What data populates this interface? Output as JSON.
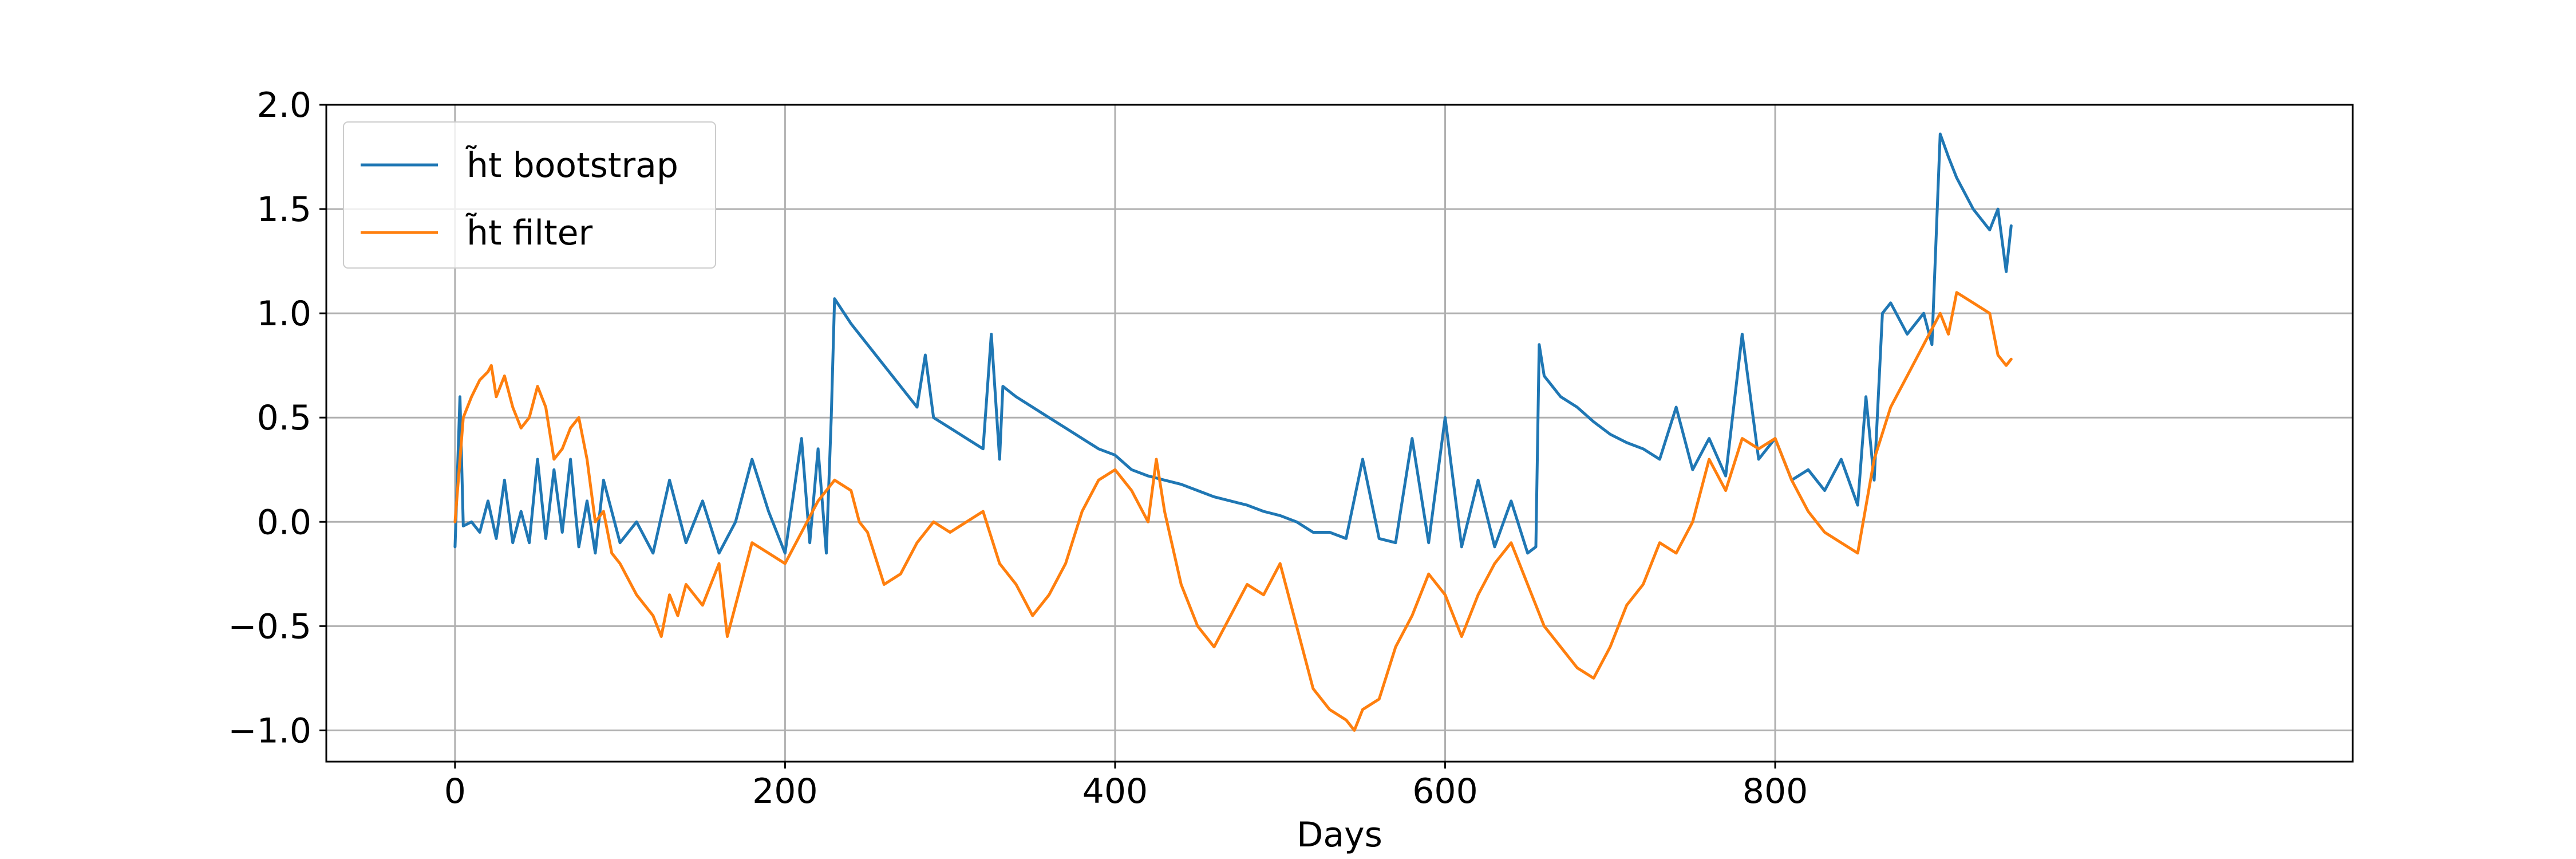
{
  "chart_data": {
    "type": "line",
    "title": "",
    "xlabel": "Days",
    "ylabel": "",
    "xlim": [
      -78,
      1150
    ],
    "ylim": [
      -1.15,
      2.0
    ],
    "x_ticks": [
      0,
      200,
      400,
      600,
      800
    ],
    "y_ticks": [
      -1.0,
      -0.5,
      0.0,
      0.5,
      1.0,
      1.5,
      2.0
    ],
    "x_tick_labels": [
      "0",
      "200",
      "400",
      "600",
      "800"
    ],
    "y_tick_labels": [
      "−1.0",
      "−0.5",
      "0.0",
      "0.5",
      "1.0",
      "1.5",
      "2.0"
    ],
    "grid": true,
    "legend_position": "upper-left",
    "series": [
      {
        "name": "h̃t bootstrap",
        "color": "#1f77b4",
        "x": [
          0,
          3,
          5,
          10,
          15,
          20,
          25,
          30,
          35,
          40,
          45,
          50,
          55,
          60,
          65,
          70,
          75,
          80,
          85,
          90,
          95,
          100,
          110,
          120,
          130,
          140,
          150,
          160,
          170,
          180,
          190,
          200,
          210,
          215,
          220,
          225,
          228,
          230,
          240,
          250,
          260,
          270,
          280,
          285,
          290,
          300,
          310,
          320,
          325,
          330,
          332,
          340,
          350,
          360,
          370,
          380,
          390,
          400,
          410,
          420,
          430,
          440,
          450,
          460,
          470,
          480,
          490,
          500,
          510,
          520,
          530,
          540,
          550,
          560,
          570,
          580,
          590,
          600,
          610,
          620,
          630,
          640,
          650,
          655,
          657,
          660,
          670,
          680,
          690,
          700,
          710,
          720,
          730,
          740,
          750,
          760,
          770,
          780,
          790,
          800,
          810,
          820,
          830,
          840,
          850,
          855,
          860,
          865,
          870,
          880,
          890,
          895,
          900,
          905,
          910,
          920,
          930,
          935,
          940,
          943
        ],
        "values": [
          -0.12,
          0.6,
          -0.02,
          0.0,
          -0.05,
          0.1,
          -0.08,
          0.2,
          -0.1,
          0.05,
          -0.1,
          0.3,
          -0.08,
          0.25,
          -0.05,
          0.3,
          -0.12,
          0.1,
          -0.15,
          0.2,
          0.05,
          -0.1,
          0.0,
          -0.15,
          0.2,
          -0.1,
          0.1,
          -0.15,
          0.0,
          0.3,
          0.05,
          -0.15,
          0.4,
          -0.1,
          0.35,
          -0.15,
          0.5,
          1.07,
          0.95,
          0.85,
          0.75,
          0.65,
          0.55,
          0.8,
          0.5,
          0.45,
          0.4,
          0.35,
          0.9,
          0.3,
          0.65,
          0.6,
          0.55,
          0.5,
          0.45,
          0.4,
          0.35,
          0.32,
          0.25,
          0.22,
          0.2,
          0.18,
          0.15,
          0.12,
          0.1,
          0.08,
          0.05,
          0.03,
          0.0,
          -0.05,
          -0.05,
          -0.08,
          0.3,
          -0.08,
          -0.1,
          0.4,
          -0.1,
          0.5,
          -0.12,
          0.2,
          -0.12,
          0.1,
          -0.15,
          -0.12,
          0.85,
          0.7,
          0.6,
          0.55,
          0.48,
          0.42,
          0.38,
          0.35,
          0.3,
          0.55,
          0.25,
          0.4,
          0.22,
          0.9,
          0.3,
          0.4,
          0.2,
          0.25,
          0.15,
          0.3,
          0.08,
          0.6,
          0.2,
          1.0,
          1.05,
          0.9,
          1.0,
          0.85,
          1.86,
          1.75,
          1.65,
          1.5,
          1.4,
          1.5,
          1.2,
          1.42
        ]
      },
      {
        "name": "h̃t filter",
        "color": "#ff7f0e",
        "x": [
          0,
          5,
          10,
          15,
          20,
          22,
          25,
          30,
          35,
          40,
          45,
          50,
          55,
          60,
          65,
          70,
          75,
          80,
          85,
          90,
          95,
          100,
          110,
          120,
          125,
          130,
          135,
          140,
          150,
          160,
          165,
          170,
          175,
          180,
          190,
          200,
          210,
          220,
          230,
          240,
          245,
          250,
          260,
          270,
          280,
          290,
          300,
          310,
          320,
          330,
          340,
          350,
          360,
          370,
          380,
          390,
          400,
          410,
          420,
          425,
          430,
          440,
          450,
          460,
          470,
          480,
          490,
          500,
          510,
          520,
          530,
          540,
          545,
          550,
          560,
          570,
          580,
          590,
          600,
          610,
          620,
          630,
          640,
          650,
          660,
          670,
          680,
          690,
          700,
          710,
          720,
          730,
          740,
          750,
          760,
          770,
          780,
          790,
          800,
          810,
          820,
          830,
          840,
          850,
          860,
          870,
          880,
          890,
          900,
          905,
          910,
          920,
          930,
          935,
          940,
          943
        ],
        "values": [
          0.0,
          0.5,
          0.6,
          0.68,
          0.72,
          0.75,
          0.6,
          0.7,
          0.55,
          0.45,
          0.5,
          0.65,
          0.55,
          0.3,
          0.35,
          0.45,
          0.5,
          0.3,
          0.0,
          0.05,
          -0.15,
          -0.2,
          -0.35,
          -0.45,
          -0.55,
          -0.35,
          -0.45,
          -0.3,
          -0.4,
          -0.2,
          -0.55,
          -0.4,
          -0.25,
          -0.1,
          -0.15,
          -0.2,
          -0.05,
          0.1,
          0.2,
          0.15,
          0.0,
          -0.05,
          -0.3,
          -0.25,
          -0.1,
          0.0,
          -0.05,
          0.0,
          0.05,
          -0.2,
          -0.3,
          -0.45,
          -0.35,
          -0.2,
          0.05,
          0.2,
          0.25,
          0.15,
          0.0,
          0.3,
          0.05,
          -0.3,
          -0.5,
          -0.6,
          -0.45,
          -0.3,
          -0.35,
          -0.2,
          -0.5,
          -0.8,
          -0.9,
          -0.95,
          -1.0,
          -0.9,
          -0.85,
          -0.6,
          -0.45,
          -0.25,
          -0.35,
          -0.55,
          -0.35,
          -0.2,
          -0.1,
          -0.3,
          -0.5,
          -0.6,
          -0.7,
          -0.75,
          -0.6,
          -0.4,
          -0.3,
          -0.1,
          -0.15,
          0.0,
          0.3,
          0.15,
          0.4,
          0.35,
          0.4,
          0.2,
          0.05,
          -0.05,
          -0.1,
          -0.15,
          0.3,
          0.55,
          0.7,
          0.85,
          1.0,
          0.9,
          1.1,
          1.05,
          1.0,
          0.8,
          0.75,
          0.78
        ]
      }
    ]
  }
}
